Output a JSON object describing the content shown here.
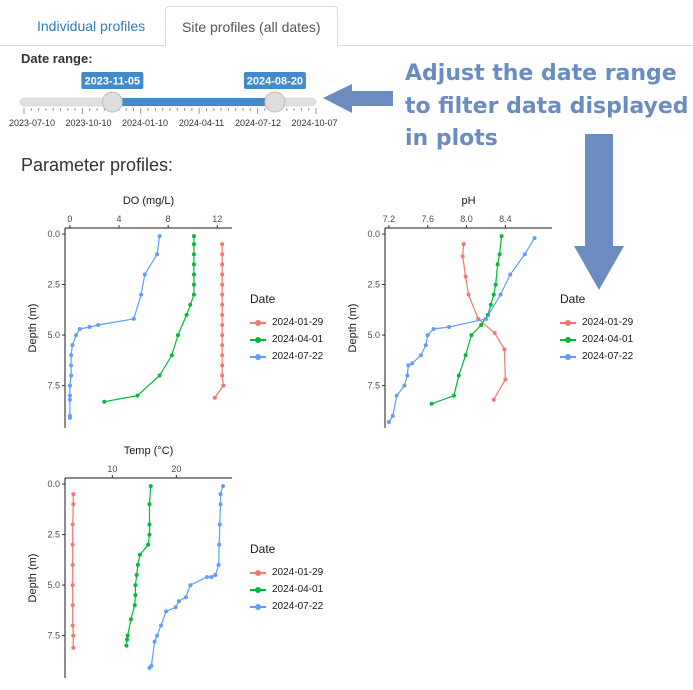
{
  "tabs": [
    {
      "label": "Individual profiles",
      "active": false
    },
    {
      "label": "Site profiles (all dates)",
      "active": true
    }
  ],
  "date_range": {
    "label": "Date range:",
    "from": "2023-11-05",
    "to": "2024-08-20",
    "axis_min": "2023-06-01",
    "axis_max": "2024-11-01",
    "ticks": [
      "2023-07-10",
      "2023-10-10",
      "2024-01-10",
      "2024-04-11",
      "2024-07-12",
      "2024-10-07"
    ],
    "track_color": "#e0e0e0",
    "bar_color": "#428bca"
  },
  "annotation": {
    "lines": [
      "Adjust the date range",
      "to filter data displayed",
      "in plots"
    ],
    "color": "#6b8cc1"
  },
  "section_title": "Parameter profiles:",
  "legend": {
    "title": "Date",
    "items": [
      {
        "label": "2024-01-29",
        "color": "#f8766d"
      },
      {
        "label": "2024-04-01",
        "color": "#00ba38"
      },
      {
        "label": "2024-07-22",
        "color": "#619cff"
      }
    ]
  },
  "chart_data": [
    {
      "type": "line",
      "title": "DO (mg/L)",
      "xlabel": "DO (mg/L)",
      "ylabel": "Depth (m)",
      "x_ticks": [
        0,
        4,
        8,
        12
      ],
      "y_ticks": [
        "0.0",
        "2.5",
        "5.0",
        "7.5"
      ],
      "xlim": [
        -0.4,
        13.2
      ],
      "ylim": [
        -0.3,
        9.6
      ],
      "series": [
        {
          "name": "2024-01-29",
          "color": "#f8766d",
          "points": [
            [
              12.4,
              0.5
            ],
            [
              12.4,
              1.0
            ],
            [
              12.4,
              1.5
            ],
            [
              12.4,
              2.0
            ],
            [
              12.4,
              2.5
            ],
            [
              12.4,
              3.0
            ],
            [
              12.4,
              3.5
            ],
            [
              12.4,
              4.0
            ],
            [
              12.4,
              4.5
            ],
            [
              12.4,
              5.0
            ],
            [
              12.4,
              5.5
            ],
            [
              12.4,
              6.0
            ],
            [
              12.4,
              6.5
            ],
            [
              12.4,
              7.0
            ],
            [
              12.5,
              7.5
            ],
            [
              11.8,
              8.1
            ]
          ]
        },
        {
          "name": "2024-04-01",
          "color": "#00ba38",
          "points": [
            [
              10.1,
              0.1
            ],
            [
              10.1,
              0.5
            ],
            [
              10.1,
              1.0
            ],
            [
              10.1,
              1.5
            ],
            [
              10.1,
              2.0
            ],
            [
              10.1,
              2.5
            ],
            [
              10.1,
              3.0
            ],
            [
              9.8,
              3.5
            ],
            [
              9.5,
              4.0
            ],
            [
              8.8,
              5.0
            ],
            [
              8.3,
              6.0
            ],
            [
              7.3,
              7.0
            ],
            [
              5.5,
              8.0
            ],
            [
              2.8,
              8.3
            ]
          ]
        },
        {
          "name": "2024-07-22",
          "color": "#619cff",
          "points": [
            [
              7.3,
              0.1
            ],
            [
              7.1,
              1.0
            ],
            [
              6.1,
              2.0
            ],
            [
              5.8,
              3.0
            ],
            [
              5.2,
              4.2
            ],
            [
              2.3,
              4.5
            ],
            [
              1.6,
              4.6
            ],
            [
              0.8,
              4.7
            ],
            [
              0.5,
              5.0
            ],
            [
              0.2,
              5.5
            ],
            [
              0.1,
              6.0
            ],
            [
              0.1,
              6.5
            ],
            [
              0.1,
              7.0
            ],
            [
              0.0,
              7.5
            ],
            [
              0.0,
              8.0
            ],
            [
              0.0,
              8.2
            ],
            [
              0.0,
              9.0
            ],
            [
              0.0,
              9.1
            ]
          ]
        }
      ]
    },
    {
      "type": "line",
      "title": "pH",
      "xlabel": "pH",
      "ylabel": "Depth (m)",
      "x_ticks": [
        7.2,
        7.6,
        8.0,
        8.4
      ],
      "x_tick_labels": [
        "7.2",
        "7.6",
        "8.0",
        "8.4"
      ],
      "y_ticks": [
        "0.0",
        "2.5",
        "5.0",
        "7.5"
      ],
      "xlim": [
        7.16,
        8.88
      ],
      "ylim": [
        -0.3,
        9.6
      ],
      "series": [
        {
          "name": "2024-01-29",
          "color": "#f8766d",
          "points": [
            [
              7.97,
              0.5
            ],
            [
              7.96,
              1.1
            ],
            [
              7.99,
              2.1
            ],
            [
              8.02,
              3.0
            ],
            [
              8.12,
              4.2
            ],
            [
              8.29,
              4.9
            ],
            [
              8.39,
              5.7
            ],
            [
              8.4,
              7.2
            ],
            [
              8.28,
              8.2
            ]
          ]
        },
        {
          "name": "2024-04-01",
          "color": "#00ba38",
          "points": [
            [
              8.36,
              0.1
            ],
            [
              8.34,
              1.0
            ],
            [
              8.32,
              1.5
            ],
            [
              8.3,
              2.5
            ],
            [
              8.28,
              3.0
            ],
            [
              8.25,
              3.5
            ],
            [
              8.22,
              4.0
            ],
            [
              8.15,
              4.5
            ],
            [
              8.05,
              5.0
            ],
            [
              7.99,
              6.0
            ],
            [
              7.92,
              7.0
            ],
            [
              7.87,
              8.0
            ],
            [
              7.64,
              8.4
            ]
          ]
        },
        {
          "name": "2024-07-22",
          "color": "#619cff",
          "points": [
            [
              8.7,
              0.2
            ],
            [
              8.6,
              1.0
            ],
            [
              8.45,
              2.0
            ],
            [
              8.35,
              3.0
            ],
            [
              8.2,
              4.2
            ],
            [
              7.82,
              4.6
            ],
            [
              7.66,
              4.7
            ],
            [
              7.6,
              5.0
            ],
            [
              7.58,
              5.5
            ],
            [
              7.53,
              6.0
            ],
            [
              7.44,
              6.4
            ],
            [
              7.4,
              6.5
            ],
            [
              7.39,
              7.0
            ],
            [
              7.36,
              7.5
            ],
            [
              7.28,
              8.0
            ],
            [
              7.24,
              9.0
            ],
            [
              7.2,
              9.3
            ]
          ]
        }
      ]
    },
    {
      "type": "line",
      "title": "Temp (°C)",
      "xlabel": "Temp (°C)",
      "ylabel": "Depth (m)",
      "x_ticks": [
        10,
        20
      ],
      "y_ticks": [
        "0.0",
        "2.5",
        "5.0",
        "7.5"
      ],
      "xlim": [
        2.6,
        28.7
      ],
      "ylim": [
        -0.3,
        9.6
      ],
      "series": [
        {
          "name": "2024-01-29",
          "color": "#f8766d",
          "points": [
            [
              3.9,
              0.5
            ],
            [
              3.9,
              1.0
            ],
            [
              3.8,
              2.0
            ],
            [
              3.8,
              3.0
            ],
            [
              3.8,
              4.0
            ],
            [
              3.8,
              5.0
            ],
            [
              3.8,
              6.0
            ],
            [
              3.8,
              7.0
            ],
            [
              3.9,
              7.5
            ],
            [
              3.9,
              8.1
            ]
          ]
        },
        {
          "name": "2024-04-01",
          "color": "#00ba38",
          "points": [
            [
              16.0,
              0.1
            ],
            [
              15.8,
              1.0
            ],
            [
              15.8,
              2.0
            ],
            [
              15.8,
              2.5
            ],
            [
              15.6,
              3.0
            ],
            [
              14.3,
              3.5
            ],
            [
              14.0,
              4.0
            ],
            [
              13.8,
              4.5
            ],
            [
              13.6,
              5.0
            ],
            [
              13.6,
              5.5
            ],
            [
              13.5,
              6.0
            ],
            [
              12.9,
              6.7
            ],
            [
              12.4,
              7.5
            ],
            [
              12.3,
              7.7
            ],
            [
              12.2,
              8.0
            ]
          ]
        },
        {
          "name": "2024-07-22",
          "color": "#619cff",
          "points": [
            [
              27.3,
              0.1
            ],
            [
              26.9,
              0.5
            ],
            [
              26.9,
              1.0
            ],
            [
              26.8,
              2.0
            ],
            [
              26.7,
              3.0
            ],
            [
              26.6,
              4.0
            ],
            [
              26.1,
              4.5
            ],
            [
              25.5,
              4.6
            ],
            [
              24.8,
              4.6
            ],
            [
              22.2,
              5.0
            ],
            [
              21.5,
              5.6
            ],
            [
              20.4,
              5.8
            ],
            [
              19.9,
              6.1
            ],
            [
              18.4,
              6.3
            ],
            [
              17.6,
              7.0
            ],
            [
              17.0,
              7.5
            ],
            [
              16.6,
              7.8
            ],
            [
              16.1,
              9.0
            ],
            [
              15.8,
              9.1
            ]
          ]
        }
      ]
    }
  ]
}
